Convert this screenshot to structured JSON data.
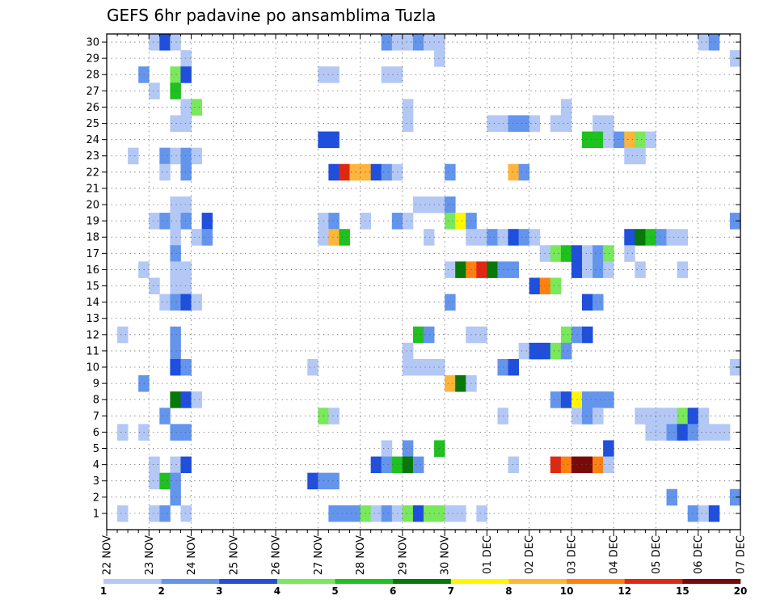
{
  "chart_data": {
    "type": "heatmap",
    "title": "GEFS 6hr padavine po ansamblima Tuzla",
    "xlabel": "",
    "ylabel": "",
    "x_labels": [
      "22 NOV",
      "23 NOV",
      "24 NOV",
      "25 NOV",
      "26 NOV",
      "27 NOV",
      "28 NOV",
      "29 NOV",
      "30 NOV",
      "01 DEC",
      "02 DEC",
      "03 DEC",
      "04 DEC",
      "05 DEC",
      "06 DEC",
      "07 DEC"
    ],
    "x_steps_per_day": 4,
    "y_labels": [
      "1",
      "2",
      "3",
      "4",
      "5",
      "6",
      "7",
      "8",
      "9",
      "10",
      "11",
      "12",
      "13",
      "14",
      "15",
      "16",
      "17",
      "18",
      "19",
      "20",
      "21",
      "22",
      "23",
      "24",
      "25",
      "26",
      "27",
      "28",
      "29",
      "30"
    ],
    "grid": true,
    "colorbar": {
      "ticks": [
        "1",
        "2",
        "3",
        "4",
        "5",
        "6",
        "7",
        "8",
        "10",
        "12",
        "15",
        "20"
      ],
      "colors": [
        "#b4c8f5",
        "#6495ed",
        "#1f4fdc",
        "#79e85b",
        "#1fc01f",
        "#087808",
        "#fff700",
        "#ffb53a",
        "#ff8010",
        "#e02810",
        "#7a0a0a"
      ]
    },
    "notes": "cells: [member, step, color index 0..10]; step = 6h interval since 22 NOV 00Z",
    "cells": [
      [
        30,
        4,
        0
      ],
      [
        30,
        5,
        2
      ],
      [
        30,
        6,
        0
      ],
      [
        30,
        26,
        1
      ],
      [
        30,
        27,
        0
      ],
      [
        30,
        28,
        0
      ],
      [
        30,
        29,
        1
      ],
      [
        30,
        30,
        0
      ],
      [
        30,
        31,
        0
      ],
      [
        30,
        56,
        0
      ],
      [
        30,
        57,
        1
      ],
      [
        29,
        7,
        0
      ],
      [
        29,
        31,
        0
      ],
      [
        29,
        59,
        0
      ],
      [
        28,
        3,
        1
      ],
      [
        28,
        6,
        3
      ],
      [
        28,
        7,
        2
      ],
      [
        28,
        20,
        0
      ],
      [
        28,
        21,
        0
      ],
      [
        28,
        26,
        0
      ],
      [
        28,
        27,
        0
      ],
      [
        27,
        4,
        0
      ],
      [
        27,
        6,
        4
      ],
      [
        26,
        7,
        0
      ],
      [
        26,
        8,
        3
      ],
      [
        26,
        28,
        0
      ],
      [
        26,
        43,
        0
      ],
      [
        25,
        6,
        0
      ],
      [
        25,
        7,
        0
      ],
      [
        25,
        28,
        0
      ],
      [
        25,
        36,
        0
      ],
      [
        25,
        37,
        0
      ],
      [
        25,
        38,
        1
      ],
      [
        25,
        39,
        1
      ],
      [
        25,
        40,
        0
      ],
      [
        25,
        42,
        0
      ],
      [
        25,
        43,
        0
      ],
      [
        25,
        46,
        0
      ],
      [
        25,
        47,
        0
      ],
      [
        24,
        20,
        2
      ],
      [
        24,
        21,
        2
      ],
      [
        24,
        45,
        4
      ],
      [
        24,
        46,
        4
      ],
      [
        24,
        47,
        0
      ],
      [
        24,
        48,
        1
      ],
      [
        24,
        49,
        7
      ],
      [
        24,
        50,
        3
      ],
      [
        24,
        51,
        0
      ],
      [
        23,
        2,
        0
      ],
      [
        23,
        5,
        1
      ],
      [
        23,
        6,
        0
      ],
      [
        23,
        7,
        1
      ],
      [
        23,
        8,
        0
      ],
      [
        23,
        49,
        0
      ],
      [
        23,
        50,
        0
      ],
      [
        22,
        5,
        0
      ],
      [
        22,
        7,
        1
      ],
      [
        22,
        21,
        2
      ],
      [
        22,
        22,
        9
      ],
      [
        22,
        23,
        7
      ],
      [
        22,
        24,
        7
      ],
      [
        22,
        25,
        2
      ],
      [
        22,
        26,
        1
      ],
      [
        22,
        27,
        0
      ],
      [
        22,
        32,
        1
      ],
      [
        22,
        38,
        7
      ],
      [
        22,
        39,
        1
      ],
      [
        20,
        6,
        0
      ],
      [
        20,
        7,
        0
      ],
      [
        20,
        29,
        0
      ],
      [
        20,
        30,
        0
      ],
      [
        20,
        31,
        0
      ],
      [
        20,
        32,
        1
      ],
      [
        19,
        4,
        0
      ],
      [
        19,
        5,
        1
      ],
      [
        19,
        6,
        0
      ],
      [
        19,
        7,
        1
      ],
      [
        19,
        9,
        2
      ],
      [
        19,
        20,
        0
      ],
      [
        19,
        21,
        1
      ],
      [
        19,
        24,
        0
      ],
      [
        19,
        27,
        1
      ],
      [
        19,
        28,
        0
      ],
      [
        19,
        32,
        3
      ],
      [
        19,
        33,
        6
      ],
      [
        19,
        34,
        1
      ],
      [
        19,
        59,
        1
      ],
      [
        18,
        6,
        0
      ],
      [
        18,
        8,
        0
      ],
      [
        18,
        9,
        1
      ],
      [
        18,
        20,
        0
      ],
      [
        18,
        21,
        7
      ],
      [
        18,
        22,
        4
      ],
      [
        18,
        30,
        0
      ],
      [
        18,
        34,
        0
      ],
      [
        18,
        35,
        0
      ],
      [
        18,
        36,
        1
      ],
      [
        18,
        37,
        0
      ],
      [
        18,
        38,
        2
      ],
      [
        18,
        39,
        1
      ],
      [
        18,
        40,
        0
      ],
      [
        18,
        49,
        2
      ],
      [
        18,
        50,
        5
      ],
      [
        18,
        51,
        4
      ],
      [
        18,
        52,
        1
      ],
      [
        18,
        53,
        0
      ],
      [
        18,
        54,
        0
      ],
      [
        17,
        6,
        1
      ],
      [
        17,
        41,
        0
      ],
      [
        17,
        42,
        3
      ],
      [
        17,
        43,
        4
      ],
      [
        17,
        44,
        2
      ],
      [
        17,
        45,
        0
      ],
      [
        17,
        46,
        1
      ],
      [
        17,
        47,
        3
      ],
      [
        17,
        49,
        0
      ],
      [
        16,
        3,
        0
      ],
      [
        16,
        6,
        0
      ],
      [
        16,
        7,
        0
      ],
      [
        16,
        32,
        0
      ],
      [
        16,
        33,
        5
      ],
      [
        16,
        34,
        8
      ],
      [
        16,
        35,
        9
      ],
      [
        16,
        36,
        5
      ],
      [
        16,
        37,
        1
      ],
      [
        16,
        38,
        1
      ],
      [
        16,
        44,
        2
      ],
      [
        16,
        45,
        0
      ],
      [
        16,
        46,
        1
      ],
      [
        16,
        47,
        0
      ],
      [
        16,
        50,
        0
      ],
      [
        16,
        54,
        0
      ],
      [
        15,
        4,
        0
      ],
      [
        15,
        6,
        0
      ],
      [
        15,
        7,
        0
      ],
      [
        15,
        40,
        2
      ],
      [
        15,
        41,
        8
      ],
      [
        15,
        42,
        3
      ],
      [
        14,
        5,
        0
      ],
      [
        14,
        6,
        1
      ],
      [
        14,
        7,
        2
      ],
      [
        14,
        8,
        0
      ],
      [
        14,
        32,
        1
      ],
      [
        14,
        45,
        2
      ],
      [
        14,
        46,
        1
      ],
      [
        12,
        1,
        0
      ],
      [
        12,
        6,
        1
      ],
      [
        12,
        29,
        4
      ],
      [
        12,
        30,
        1
      ],
      [
        12,
        34,
        0
      ],
      [
        12,
        35,
        0
      ],
      [
        12,
        43,
        3
      ],
      [
        12,
        44,
        1
      ],
      [
        12,
        45,
        2
      ],
      [
        11,
        6,
        1
      ],
      [
        11,
        28,
        0
      ],
      [
        11,
        39,
        0
      ],
      [
        11,
        40,
        2
      ],
      [
        11,
        41,
        2
      ],
      [
        11,
        42,
        3
      ],
      [
        11,
        43,
        1
      ],
      [
        10,
        6,
        2
      ],
      [
        10,
        7,
        1
      ],
      [
        10,
        19,
        0
      ],
      [
        10,
        28,
        0
      ],
      [
        10,
        29,
        0
      ],
      [
        10,
        30,
        0
      ],
      [
        10,
        31,
        0
      ],
      [
        10,
        37,
        1
      ],
      [
        10,
        38,
        2
      ],
      [
        10,
        59,
        0
      ],
      [
        9,
        3,
        1
      ],
      [
        9,
        32,
        7
      ],
      [
        9,
        33,
        5
      ],
      [
        9,
        34,
        0
      ],
      [
        8,
        6,
        5
      ],
      [
        8,
        7,
        2
      ],
      [
        8,
        8,
        0
      ],
      [
        8,
        42,
        1
      ],
      [
        8,
        43,
        2
      ],
      [
        8,
        44,
        6
      ],
      [
        8,
        45,
        1
      ],
      [
        8,
        46,
        1
      ],
      [
        8,
        47,
        1
      ],
      [
        7,
        5,
        1
      ],
      [
        7,
        20,
        3
      ],
      [
        7,
        21,
        0
      ],
      [
        7,
        37,
        0
      ],
      [
        7,
        44,
        0
      ],
      [
        7,
        45,
        1
      ],
      [
        7,
        46,
        0
      ],
      [
        7,
        50,
        0
      ],
      [
        7,
        51,
        0
      ],
      [
        7,
        52,
        0
      ],
      [
        7,
        53,
        0
      ],
      [
        7,
        54,
        3
      ],
      [
        7,
        55,
        2
      ],
      [
        7,
        56,
        0
      ],
      [
        6,
        1,
        0
      ],
      [
        6,
        3,
        0
      ],
      [
        6,
        6,
        1
      ],
      [
        6,
        7,
        1
      ],
      [
        6,
        51,
        0
      ],
      [
        6,
        52,
        0
      ],
      [
        6,
        53,
        1
      ],
      [
        6,
        54,
        2
      ],
      [
        6,
        55,
        1
      ],
      [
        6,
        56,
        0
      ],
      [
        6,
        57,
        0
      ],
      [
        6,
        58,
        0
      ],
      [
        5,
        26,
        0
      ],
      [
        5,
        28,
        1
      ],
      [
        5,
        31,
        4
      ],
      [
        5,
        47,
        2
      ],
      [
        4,
        4,
        0
      ],
      [
        4,
        6,
        0
      ],
      [
        4,
        7,
        2
      ],
      [
        4,
        25,
        2
      ],
      [
        4,
        26,
        1
      ],
      [
        4,
        27,
        4
      ],
      [
        4,
        28,
        5
      ],
      [
        4,
        29,
        1
      ],
      [
        4,
        38,
        0
      ],
      [
        4,
        42,
        9
      ],
      [
        4,
        43,
        8
      ],
      [
        4,
        44,
        10
      ],
      [
        4,
        45,
        10
      ],
      [
        4,
        46,
        8
      ],
      [
        4,
        47,
        0
      ],
      [
        3,
        4,
        0
      ],
      [
        3,
        5,
        4
      ],
      [
        3,
        6,
        1
      ],
      [
        3,
        19,
        2
      ],
      [
        3,
        20,
        1
      ],
      [
        3,
        21,
        1
      ],
      [
        2,
        6,
        1
      ],
      [
        2,
        53,
        1
      ],
      [
        2,
        59,
        1
      ],
      [
        1,
        1,
        0
      ],
      [
        1,
        4,
        0
      ],
      [
        1,
        5,
        1
      ],
      [
        1,
        7,
        0
      ],
      [
        1,
        21,
        1
      ],
      [
        1,
        22,
        1
      ],
      [
        1,
        23,
        1
      ],
      [
        1,
        24,
        3
      ],
      [
        1,
        25,
        0
      ],
      [
        1,
        26,
        1
      ],
      [
        1,
        27,
        0
      ],
      [
        1,
        28,
        3
      ],
      [
        1,
        29,
        2
      ],
      [
        1,
        30,
        3
      ],
      [
        1,
        31,
        3
      ],
      [
        1,
        32,
        0
      ],
      [
        1,
        33,
        0
      ],
      [
        1,
        35,
        0
      ],
      [
        1,
        55,
        1
      ],
      [
        1,
        56,
        0
      ],
      [
        1,
        57,
        2
      ]
    ]
  }
}
